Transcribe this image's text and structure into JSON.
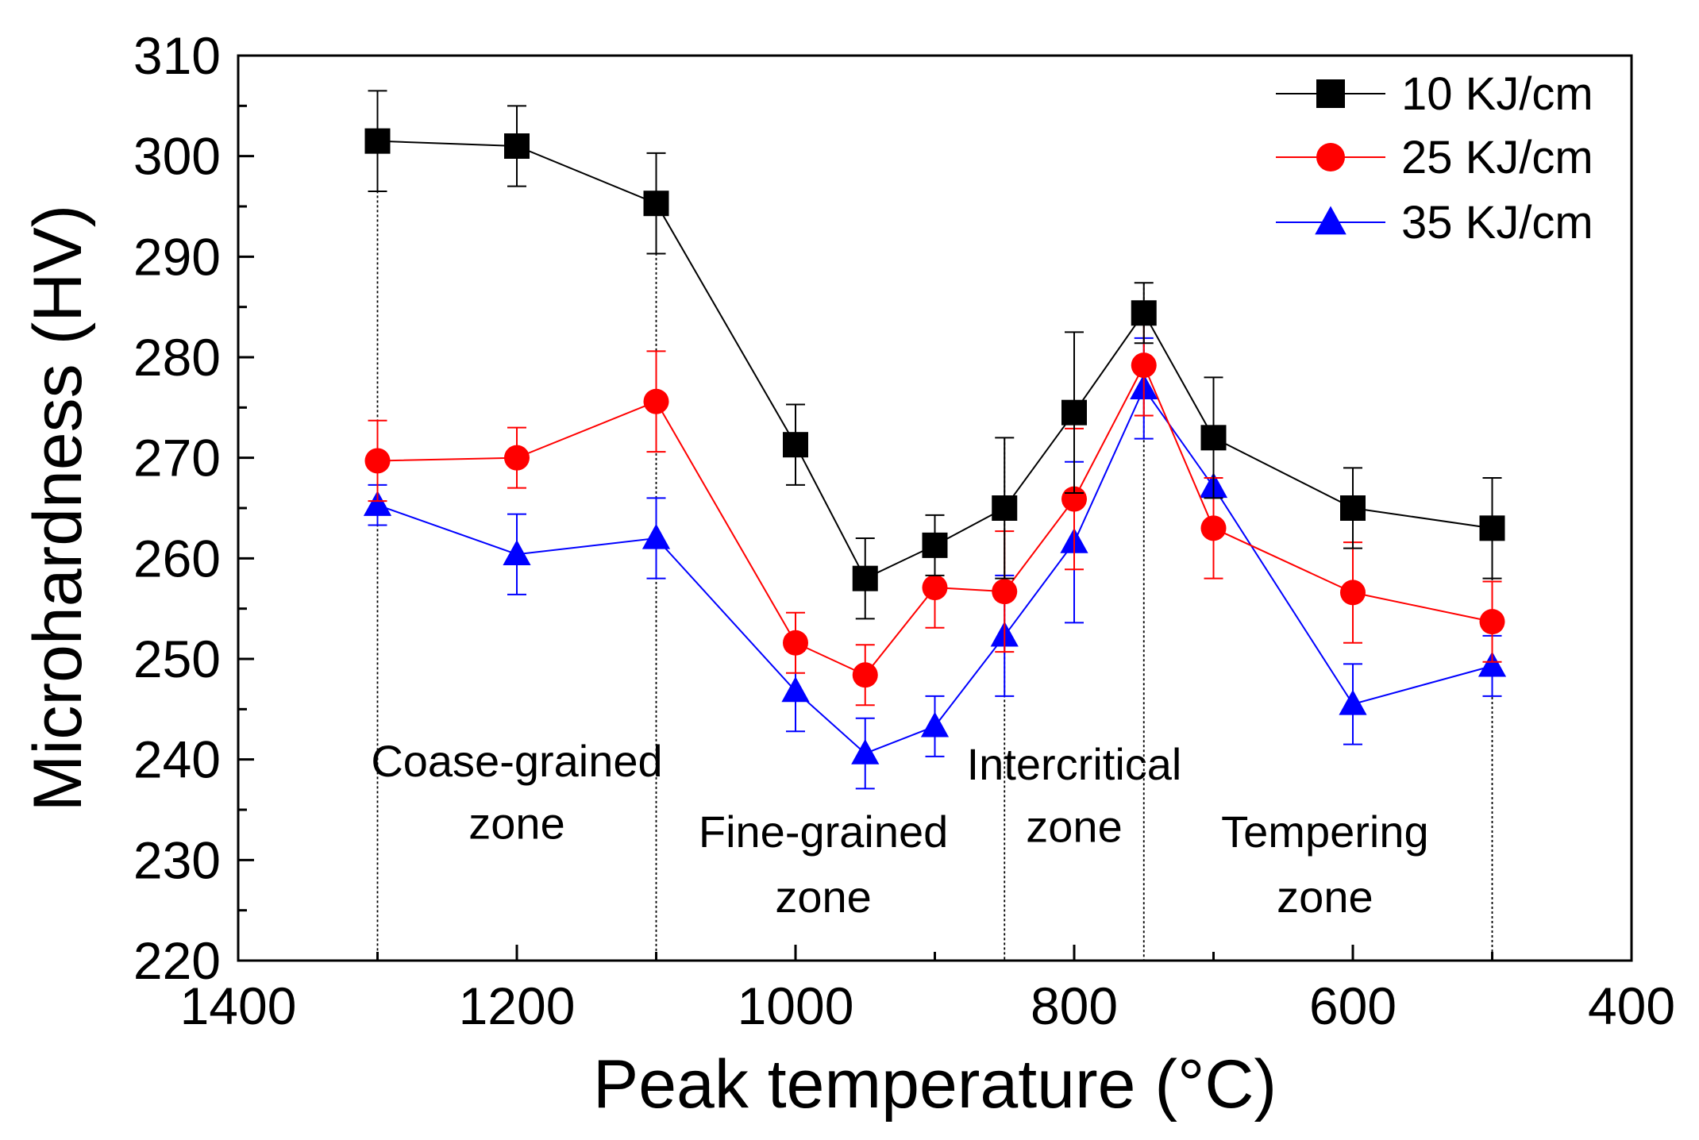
{
  "chart_data": {
    "type": "line",
    "xlabel": "Peak temperature (°C)",
    "ylabel": "Microhardness (HV)",
    "xlim": [
      1400,
      400
    ],
    "ylim": [
      220,
      310
    ],
    "x_ticks": [
      1400,
      1200,
      1000,
      800,
      600,
      400
    ],
    "y_ticks": [
      220,
      230,
      240,
      250,
      260,
      270,
      280,
      290,
      300,
      310
    ],
    "legend_position": "top-right",
    "x": [
      1300,
      1200,
      1100,
      1000,
      950,
      900,
      850,
      800,
      750,
      700,
      600,
      500
    ],
    "series": [
      {
        "name": "10 KJ/cm",
        "color": "#000000",
        "marker": "square",
        "values": [
          301.5,
          301.0,
          295.3,
          271.3,
          258.0,
          261.3,
          265.0,
          274.5,
          284.4,
          272.0,
          265.0,
          263.0
        ],
        "errors": [
          5.0,
          4.0,
          5.0,
          4.0,
          4.0,
          3.0,
          7.0,
          8.0,
          3.0,
          6.0,
          4.0,
          5.0
        ]
      },
      {
        "name": "25 KJ/cm",
        "color": "#ff0000",
        "marker": "circle",
        "values": [
          269.7,
          270.0,
          275.6,
          251.6,
          248.4,
          257.1,
          256.7,
          265.9,
          279.2,
          263.0,
          256.6,
          253.7
        ],
        "errors": [
          4.0,
          3.0,
          5.0,
          3.0,
          3.0,
          4.0,
          6.0,
          7.0,
          5.0,
          5.0,
          5.0,
          4.0
        ]
      },
      {
        "name": "35 KJ/cm",
        "color": "#0000ff",
        "marker": "triangle",
        "values": [
          265.3,
          260.4,
          262.0,
          246.8,
          240.6,
          243.3,
          252.3,
          261.6,
          276.9,
          267.1,
          245.5,
          249.3
        ],
        "errors": [
          2.0,
          4.0,
          4.0,
          4.0,
          3.5,
          3.0,
          6.0,
          8.0,
          5.0,
          4.0,
          4.0,
          3.0
        ]
      }
    ],
    "zone_boundaries": [
      1300,
      1100,
      850,
      750,
      500
    ],
    "zone_annotations": [
      {
        "lines": [
          "Coase-grained",
          "zone"
        ],
        "x": 1200,
        "y": [
          238.3,
          232.1
        ]
      },
      {
        "lines": [
          "Fine-grained",
          "zone"
        ],
        "x": 980,
        "y": [
          231.3,
          224.8
        ]
      },
      {
        "lines": [
          "Intercritical",
          "zone"
        ],
        "x": 800,
        "y": [
          238.0,
          231.8
        ]
      },
      {
        "lines": [
          "Tempering",
          "zone"
        ],
        "x": 620,
        "y": [
          231.3,
          224.8
        ]
      }
    ]
  }
}
